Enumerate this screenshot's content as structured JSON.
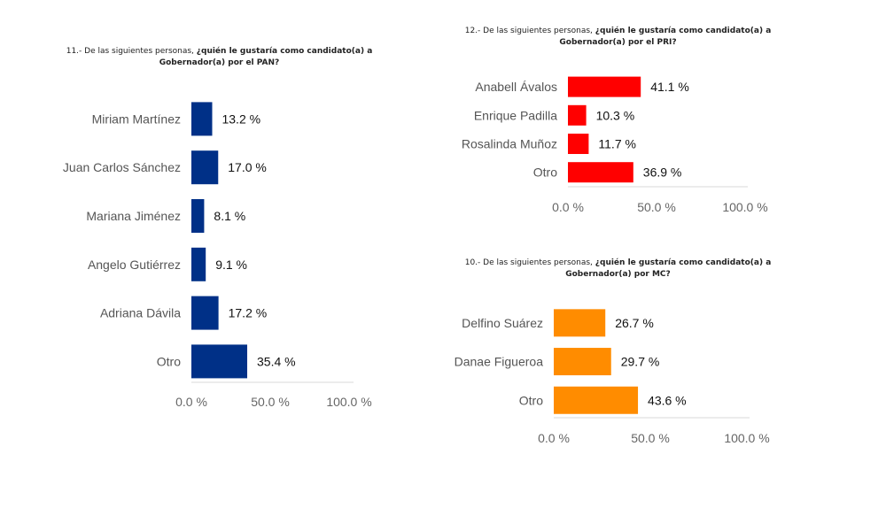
{
  "chart_data": [
    {
      "type": "bar",
      "orientation": "horizontal",
      "title_plain": "11.- De las siguientes personas, ",
      "title_bold": "¿quién le gustaría como candidato(a) a Gobernador(a) por el PAN?",
      "categories": [
        "Miriam Martínez",
        "Juan Carlos Sánchez",
        "Mariana Jiménez",
        "Angelo Gutiérrez",
        "Adriana Dávila",
        "Otro"
      ],
      "values": [
        13.2,
        17.0,
        8.1,
        9.1,
        17.2,
        35.4
      ],
      "value_labels": [
        "13.2 %",
        "17.0 %",
        "8.1 %",
        "9.1 %",
        "17.2 %",
        "35.4 %"
      ],
      "xlim": [
        0,
        100
      ],
      "ticks": [
        "0.0 %",
        "50.0 %",
        "100.0 %"
      ],
      "color": "#003087",
      "grid": false
    },
    {
      "type": "bar",
      "orientation": "horizontal",
      "title_plain": "12.- De las siguientes personas, ",
      "title_bold": "¿quién le gustaría como candidato(a) a Gobernador(a) por el PRI?",
      "categories": [
        "Anabell Ávalos",
        "Enrique Padilla",
        "Rosalinda Muñoz",
        "Otro"
      ],
      "values": [
        41.1,
        10.3,
        11.7,
        36.9
      ],
      "value_labels": [
        "41.1 %",
        "10.3 %",
        "11.7 %",
        "36.9 %"
      ],
      "xlim": [
        0,
        100
      ],
      "ticks": [
        "0.0 %",
        "50.0 %",
        "100.0 %"
      ],
      "color": "#ff0000",
      "grid": false
    },
    {
      "type": "bar",
      "orientation": "horizontal",
      "title_plain": "10.- De las siguientes personas, ",
      "title_bold": "¿quién le gustaría como candidato(a) a Gobernador(a) por MC?",
      "categories": [
        "Delfino Suárez",
        "Danae Figueroa",
        "Otro"
      ],
      "values": [
        26.7,
        29.7,
        43.6
      ],
      "value_labels": [
        "26.7 %",
        "29.7 %",
        "43.6 %"
      ],
      "xlim": [
        0,
        100
      ],
      "ticks": [
        "0.0 %",
        "50.0 %",
        "100.0 %"
      ],
      "color": "#ff8c00",
      "grid": false
    }
  ]
}
